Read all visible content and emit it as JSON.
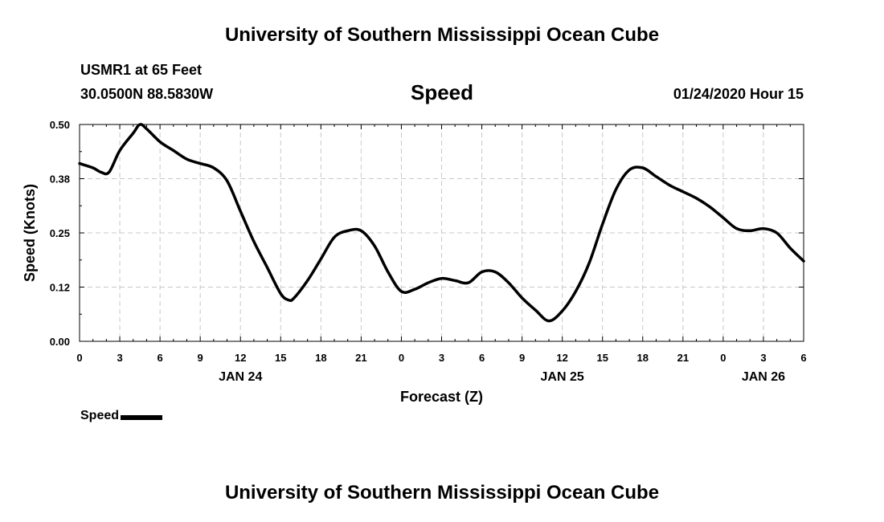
{
  "header": {
    "title": "University of Southern Mississippi Ocean Cube",
    "station": "USMR1 at 65 Feet",
    "coordinates": "30.0500N 88.5830W",
    "timestamp": "01/24/2020 Hour 15"
  },
  "footer": {
    "title": "University of Southern Mississippi Ocean Cube"
  },
  "legend": {
    "label": "Speed",
    "color": "#000000"
  },
  "chart_data": {
    "type": "line",
    "title": "Speed",
    "xlabel": "Forecast (Z)",
    "ylabel": "Speed (Knots)",
    "xlim": [
      0,
      54
    ],
    "ylim": [
      0,
      0.5
    ],
    "grid": true,
    "legend_position": "bottom-left",
    "x_ticks": [
      0,
      3,
      6,
      9,
      12,
      15,
      18,
      21,
      24,
      27,
      30,
      33,
      36,
      39,
      42,
      45,
      48,
      51,
      54
    ],
    "x_tick_labels": [
      "0",
      "3",
      "6",
      "9",
      "12",
      "15",
      "18",
      "21",
      "0",
      "3",
      "6",
      "9",
      "12",
      "15",
      "18",
      "21",
      "0",
      "3",
      "6"
    ],
    "date_labels": [
      {
        "x": 12,
        "label": "JAN 24"
      },
      {
        "x": 36,
        "label": "JAN 25"
      },
      {
        "x": 51,
        "label": "JAN 26"
      }
    ],
    "y_ticks": [
      0.0,
      0.125,
      0.25,
      0.375,
      0.5
    ],
    "y_tick_labels": [
      "0.00",
      "0.12",
      "0.25",
      "0.38",
      "0.50"
    ],
    "series": [
      {
        "name": "Speed",
        "color": "#000000",
        "x": [
          0,
          1,
          1.6,
          2.2,
          3,
          4,
          4.5,
          5,
          6,
          7,
          8,
          9,
          10,
          11,
          12,
          13,
          14,
          15,
          15.6,
          16,
          17,
          18,
          19,
          20,
          21,
          22,
          23,
          24,
          25,
          26,
          27,
          28,
          29,
          30,
          31,
          32,
          33,
          34,
          35,
          36,
          37,
          38,
          39,
          40,
          41,
          42,
          43,
          44,
          45,
          46,
          47,
          48,
          49,
          50,
          51,
          52,
          53,
          54
        ],
        "y": [
          0.41,
          0.4,
          0.39,
          0.39,
          0.44,
          0.48,
          0.5,
          0.49,
          0.46,
          0.44,
          0.42,
          0.41,
          0.4,
          0.37,
          0.3,
          0.23,
          0.17,
          0.11,
          0.095,
          0.1,
          0.14,
          0.19,
          0.24,
          0.255,
          0.255,
          0.22,
          0.16,
          0.115,
          0.12,
          0.135,
          0.145,
          0.14,
          0.135,
          0.16,
          0.16,
          0.135,
          0.1,
          0.072,
          0.047,
          0.07,
          0.115,
          0.18,
          0.27,
          0.35,
          0.395,
          0.4,
          0.38,
          0.36,
          0.345,
          0.33,
          0.31,
          0.285,
          0.26,
          0.255,
          0.26,
          0.25,
          0.215,
          0.185
        ]
      }
    ]
  }
}
